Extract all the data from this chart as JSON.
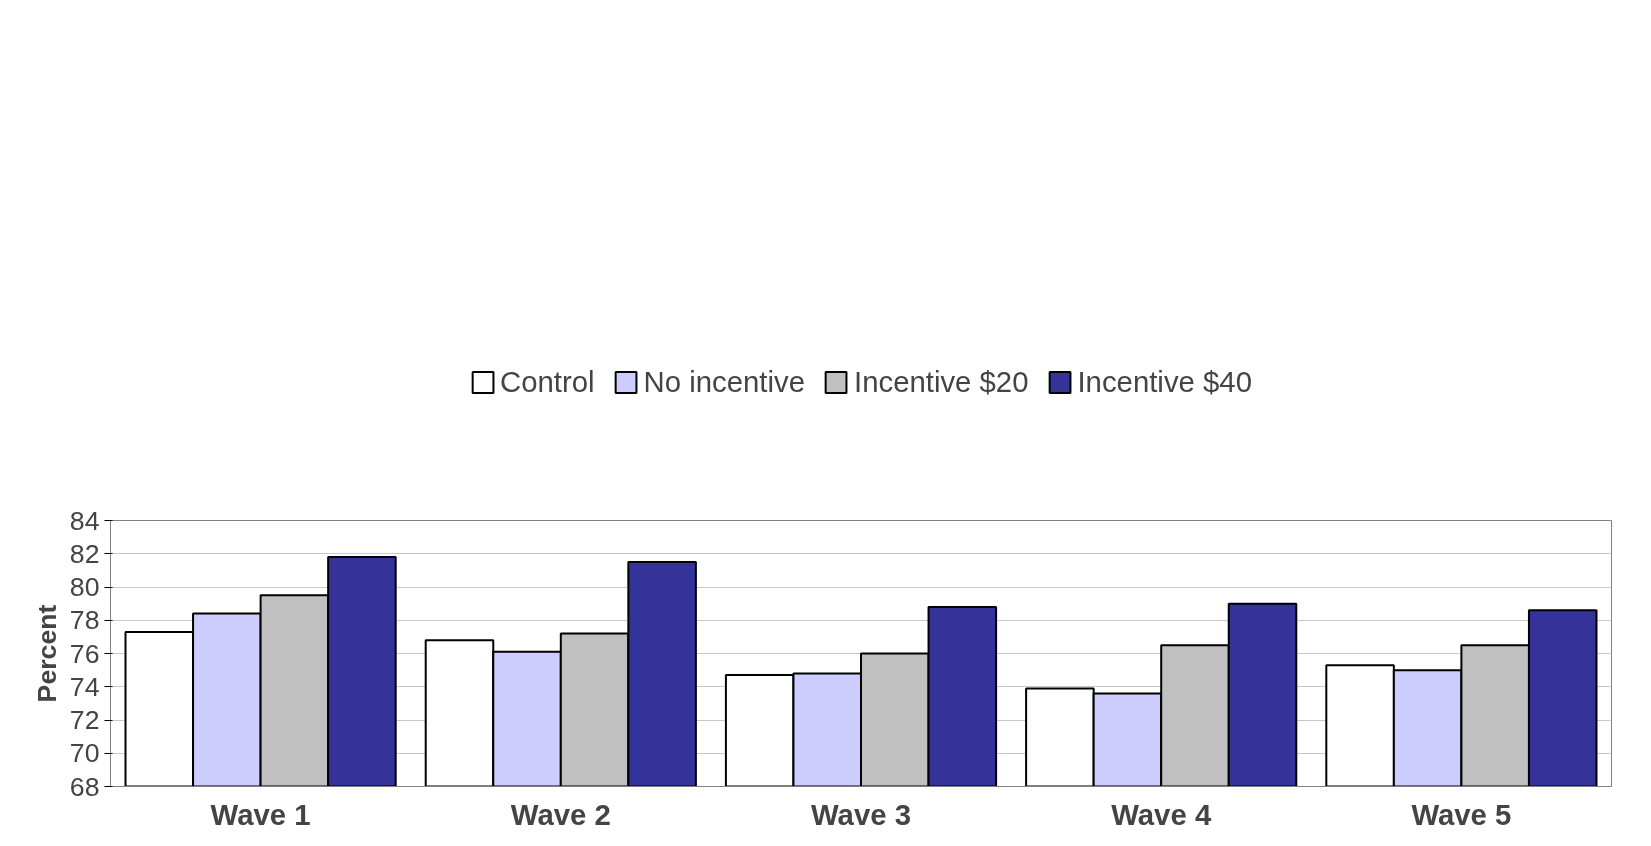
{
  "chart_data": {
    "type": "bar",
    "ylabel": "Percent",
    "categories": [
      "Wave 1",
      "Wave 2",
      "Wave 3",
      "Wave 4",
      "Wave 5"
    ],
    "series": [
      {
        "name": "Control",
        "color": "#ffffff",
        "values": [
          77.3,
          76.8,
          74.7,
          73.9,
          75.3
        ]
      },
      {
        "name": "No incentive",
        "color": "#ccccff",
        "values": [
          78.4,
          76.1,
          74.8,
          73.6,
          75.0
        ]
      },
      {
        "name": "Incentive $20",
        "color": "#c0c0c0",
        "values": [
          79.5,
          77.2,
          76.0,
          76.5,
          76.5
        ]
      },
      {
        "name": "Incentive $40",
        "color": "#333399",
        "values": [
          81.8,
          81.5,
          78.8,
          79.0,
          78.6
        ]
      }
    ],
    "ylim": [
      68,
      84
    ],
    "yticks": [
      68,
      70,
      72,
      74,
      76,
      78,
      80,
      82,
      84
    ],
    "grid": "y",
    "legend": "top"
  }
}
